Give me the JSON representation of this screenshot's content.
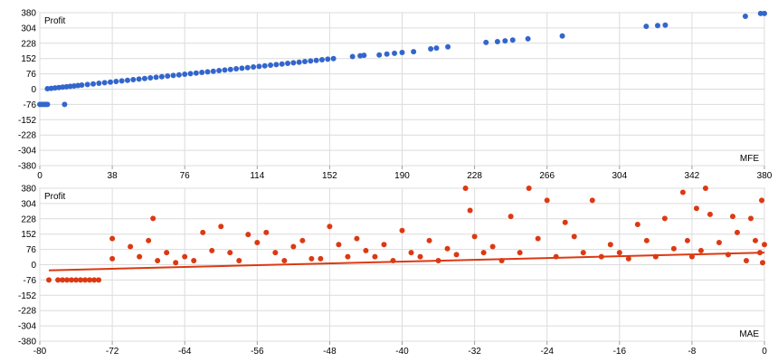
{
  "chart_data": [
    {
      "type": "scatter",
      "title": "",
      "ylabel": "Profit",
      "xlabel": "MFE",
      "xlim": [
        0,
        380
      ],
      "ylim": [
        -380,
        380
      ],
      "x_ticks": [
        0,
        38,
        76,
        114,
        152,
        190,
        228,
        266,
        304,
        342,
        380
      ],
      "y_ticks": [
        380,
        304,
        228,
        152,
        76,
        0,
        -76,
        -152,
        -228,
        -304,
        -380
      ],
      "grid": true,
      "color": "#3366cc",
      "points": [
        [
          0,
          -76
        ],
        [
          1,
          -76
        ],
        [
          2,
          -76
        ],
        [
          3,
          -76
        ],
        [
          4,
          -76
        ],
        [
          13,
          -76
        ],
        [
          4,
          2
        ],
        [
          6,
          4
        ],
        [
          8,
          6
        ],
        [
          10,
          8
        ],
        [
          12,
          10
        ],
        [
          14,
          12
        ],
        [
          16,
          14
        ],
        [
          18,
          16
        ],
        [
          20,
          18
        ],
        [
          22,
          20
        ],
        [
          25,
          23
        ],
        [
          28,
          26
        ],
        [
          31,
          29
        ],
        [
          34,
          32
        ],
        [
          37,
          35
        ],
        [
          40,
          38
        ],
        [
          43,
          41
        ],
        [
          46,
          44
        ],
        [
          49,
          47
        ],
        [
          52,
          50
        ],
        [
          55,
          53
        ],
        [
          58,
          56
        ],
        [
          61,
          59
        ],
        [
          64,
          62
        ],
        [
          67,
          65
        ],
        [
          70,
          68
        ],
        [
          73,
          71
        ],
        [
          76,
          74
        ],
        [
          79,
          77
        ],
        [
          82,
          80
        ],
        [
          85,
          83
        ],
        [
          88,
          86
        ],
        [
          91,
          89
        ],
        [
          94,
          92
        ],
        [
          97,
          95
        ],
        [
          100,
          98
        ],
        [
          103,
          101
        ],
        [
          106,
          104
        ],
        [
          109,
          107
        ],
        [
          112,
          110
        ],
        [
          115,
          113
        ],
        [
          118,
          116
        ],
        [
          121,
          119
        ],
        [
          124,
          122
        ],
        [
          127,
          125
        ],
        [
          130,
          128
        ],
        [
          133,
          131
        ],
        [
          136,
          134
        ],
        [
          139,
          137
        ],
        [
          142,
          140
        ],
        [
          145,
          143
        ],
        [
          148,
          146
        ],
        [
          151,
          149
        ],
        [
          154,
          152
        ],
        [
          164,
          162
        ],
        [
          168,
          166
        ],
        [
          170,
          168
        ],
        [
          178,
          170
        ],
        [
          182,
          174
        ],
        [
          186,
          178
        ],
        [
          190,
          182
        ],
        [
          196,
          186
        ],
        [
          205,
          200
        ],
        [
          208,
          204
        ],
        [
          214,
          210
        ],
        [
          234,
          232
        ],
        [
          240,
          236
        ],
        [
          244,
          240
        ],
        [
          248,
          244
        ],
        [
          256,
          250
        ],
        [
          274,
          264
        ],
        [
          318,
          312
        ],
        [
          324,
          316
        ],
        [
          328,
          318
        ],
        [
          370,
          362
        ],
        [
          378,
          376
        ],
        [
          380,
          376
        ]
      ]
    },
    {
      "type": "scatter",
      "title": "",
      "ylabel": "Profit",
      "xlabel": "MAE",
      "xlim": [
        -80,
        0
      ],
      "ylim": [
        -380,
        380
      ],
      "x_ticks": [
        -80,
        -72,
        -64,
        -56,
        -48,
        -40,
        -32,
        -24,
        -16,
        -8,
        0
      ],
      "y_ticks": [
        380,
        304,
        228,
        152,
        76,
        0,
        -76,
        -152,
        -228,
        -304,
        -380
      ],
      "grid": true,
      "color": "#dc3912",
      "trendline": {
        "x": [
          -79,
          0
        ],
        "y": [
          -28,
          60
        ]
      },
      "points": [
        [
          -79,
          -76
        ],
        [
          -78,
          -76
        ],
        [
          -77.5,
          -76
        ],
        [
          -77,
          -76
        ],
        [
          -76.5,
          -76
        ],
        [
          -76,
          -76
        ],
        [
          -75.5,
          -76
        ],
        [
          -75,
          -76
        ],
        [
          -74.5,
          -76
        ],
        [
          -74,
          -76
        ],
        [
          -73.5,
          -76
        ],
        [
          -72,
          130
        ],
        [
          -72,
          30
        ],
        [
          -70,
          90
        ],
        [
          -69,
          40
        ],
        [
          -68,
          120
        ],
        [
          -67.5,
          230
        ],
        [
          -67,
          20
        ],
        [
          -66,
          60
        ],
        [
          -65,
          10
        ],
        [
          -64,
          40
        ],
        [
          -63,
          20
        ],
        [
          -62,
          160
        ],
        [
          -61,
          70
        ],
        [
          -60,
          190
        ],
        [
          -59,
          60
        ],
        [
          -58,
          20
        ],
        [
          -57,
          150
        ],
        [
          -56,
          110
        ],
        [
          -55,
          160
        ],
        [
          -54,
          60
        ],
        [
          -53,
          20
        ],
        [
          -52,
          90
        ],
        [
          -51,
          120
        ],
        [
          -50,
          30
        ],
        [
          -49,
          30
        ],
        [
          -48,
          190
        ],
        [
          -47,
          100
        ],
        [
          -46,
          40
        ],
        [
          -45,
          130
        ],
        [
          -44,
          70
        ],
        [
          -43,
          40
        ],
        [
          -42,
          100
        ],
        [
          -41,
          20
        ],
        [
          -40,
          170
        ],
        [
          -39,
          60
        ],
        [
          -38,
          40
        ],
        [
          -37,
          120
        ],
        [
          -36,
          20
        ],
        [
          -35,
          80
        ],
        [
          -34,
          50
        ],
        [
          -33,
          380
        ],
        [
          -32.5,
          270
        ],
        [
          -32,
          140
        ],
        [
          -31,
          60
        ],
        [
          -30,
          90
        ],
        [
          -29,
          20
        ],
        [
          -28,
          240
        ],
        [
          -27,
          60
        ],
        [
          -26,
          380
        ],
        [
          -25,
          130
        ],
        [
          -24,
          320
        ],
        [
          -23,
          40
        ],
        [
          -22,
          210
        ],
        [
          -21,
          140
        ],
        [
          -20,
          60
        ],
        [
          -19,
          320
        ],
        [
          -18,
          40
        ],
        [
          -17,
          100
        ],
        [
          -16,
          60
        ],
        [
          -15,
          30
        ],
        [
          -14,
          200
        ],
        [
          -13,
          120
        ],
        [
          -12,
          40
        ],
        [
          -11,
          230
        ],
        [
          -10,
          80
        ],
        [
          -9,
          360
        ],
        [
          -8.5,
          120
        ],
        [
          -8,
          40
        ],
        [
          -7.5,
          280
        ],
        [
          -7,
          70
        ],
        [
          -6.5,
          380
        ],
        [
          -6,
          250
        ],
        [
          -5,
          110
        ],
        [
          -4,
          50
        ],
        [
          -3.5,
          240
        ],
        [
          -3,
          160
        ],
        [
          -2,
          20
        ],
        [
          -1.5,
          230
        ],
        [
          -1,
          120
        ],
        [
          -0.5,
          60
        ],
        [
          -0.3,
          320
        ],
        [
          -0.2,
          10
        ],
        [
          0,
          100
        ]
      ]
    }
  ]
}
